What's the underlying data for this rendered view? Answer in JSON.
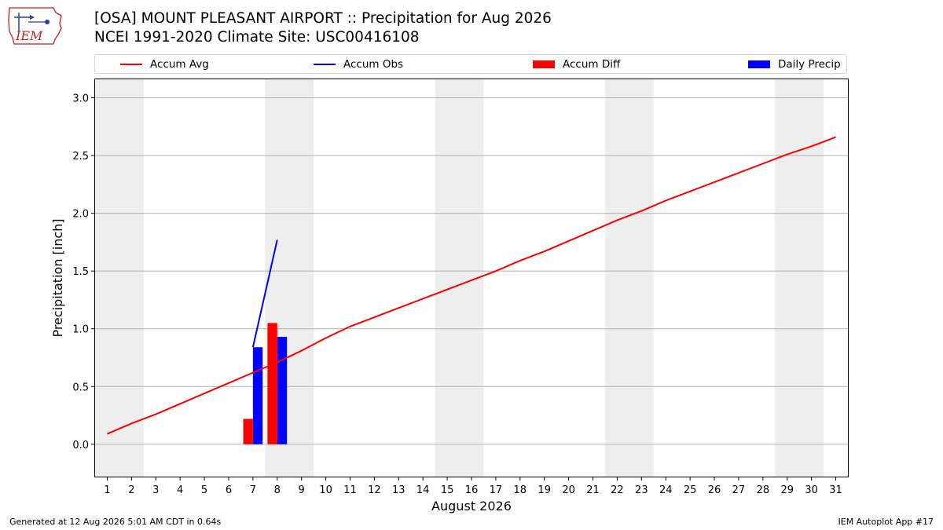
{
  "header": {
    "title": "[OSA] MOUNT PLEASANT AIRPORT :: Precipitation for Aug 2026",
    "subtitle": "NCEI 1991-2020 Climate Site: USC00416108"
  },
  "logo": {
    "text": "IEM",
    "icon": "iem-iowa-logo"
  },
  "legend": {
    "items": [
      {
        "label": "Accum Avg",
        "kind": "line",
        "color": "#ff0000"
      },
      {
        "label": "Accum Obs",
        "kind": "line",
        "color": "#0000ff"
      },
      {
        "label": "Accum Diff",
        "kind": "box",
        "color": "#ff0000"
      },
      {
        "label": "Daily Precip",
        "kind": "box",
        "color": "#0000ff"
      }
    ]
  },
  "footer": {
    "left": "Generated at 12 Aug 2026 5:01 AM CDT in 0.64s",
    "right": "IEM Autoplot App #17"
  },
  "chart_data": {
    "type": "bar",
    "title": "[OSA] MOUNT PLEASANT AIRPORT :: Precipitation for Aug 2026",
    "xlabel": "August 2026",
    "ylabel": "Precipitation [inch]",
    "xlim": [
      0.5,
      31.5
    ],
    "ylim": [
      -0.28,
      3.16
    ],
    "x_ticks": [
      1,
      2,
      3,
      4,
      5,
      6,
      7,
      8,
      9,
      10,
      11,
      12,
      13,
      14,
      15,
      16,
      17,
      18,
      19,
      20,
      21,
      22,
      23,
      24,
      25,
      26,
      27,
      28,
      29,
      30,
      31
    ],
    "y_ticks": [
      0.0,
      0.5,
      1.0,
      1.5,
      2.0,
      2.5,
      3.0
    ],
    "y_tick_labels": [
      "0.0",
      "0.5",
      "1.0",
      "1.5",
      "2.0",
      "2.5",
      "3.0"
    ],
    "grid": "horizontal",
    "legend_placement": "top",
    "weekend_shading": [
      [
        0.5,
        2.5
      ],
      [
        7.5,
        9.5
      ],
      [
        14.5,
        16.5
      ],
      [
        21.5,
        23.5
      ],
      [
        28.5,
        30.5
      ]
    ],
    "shade_color": "#eeeeee",
    "series": [
      {
        "name": "Accum Avg",
        "kind": "line",
        "color": "#ff0000",
        "x": [
          1,
          2,
          3,
          4,
          5,
          6,
          7,
          8,
          9,
          10,
          11,
          12,
          13,
          14,
          15,
          16,
          17,
          18,
          19,
          20,
          21,
          22,
          23,
          24,
          25,
          26,
          27,
          28,
          29,
          30,
          31
        ],
        "values": [
          0.09,
          0.18,
          0.26,
          0.35,
          0.44,
          0.53,
          0.62,
          0.71,
          0.81,
          0.92,
          1.02,
          1.1,
          1.18,
          1.26,
          1.34,
          1.42,
          1.5,
          1.59,
          1.67,
          1.76,
          1.85,
          1.94,
          2.02,
          2.11,
          2.19,
          2.27,
          2.35,
          2.43,
          2.51,
          2.58,
          2.66
        ]
      },
      {
        "name": "Accum Obs",
        "kind": "line",
        "color": "#0000ff",
        "x": [
          7,
          8
        ],
        "values": [
          0.84,
          1.77
        ]
      },
      {
        "name": "Accum Diff",
        "kind": "bar",
        "color": "#ff0000",
        "x": [
          7,
          8
        ],
        "values": [
          0.22,
          1.05
        ]
      },
      {
        "name": "Daily Precip",
        "kind": "bar",
        "color": "#0000ff",
        "x": [
          7,
          8
        ],
        "values": [
          0.84,
          0.93
        ]
      }
    ]
  }
}
